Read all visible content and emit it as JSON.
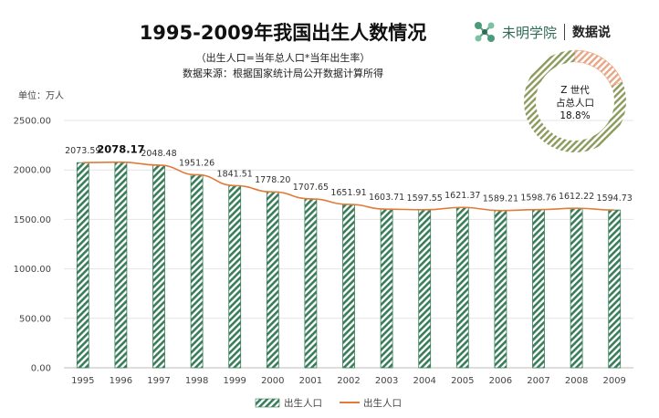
{
  "header": {
    "title": "1995-2009年我国出生人数情况",
    "subtitle": "（出生人口=当年总人口*当年出生率）",
    "source": "数据来源：根据国家统计局公开数据计算所得",
    "unit": "单位：万人"
  },
  "brand": {
    "name": "未明学院",
    "sub": "数据说",
    "logo_icon": "molecule-logo-icon",
    "color": "#2f6b57"
  },
  "donut": {
    "line1": "Z 世代",
    "line2": "占总人口",
    "percent_label": "18.8%",
    "value": 0.188,
    "highlight_color": "#e9a584",
    "base_color": "#8a9a5b"
  },
  "chart_data": {
    "type": "bar",
    "categories": [
      "1995",
      "1996",
      "1997",
      "1998",
      "1999",
      "2000",
      "2001",
      "2002",
      "2003",
      "2004",
      "2005",
      "2006",
      "2007",
      "2008",
      "2009"
    ],
    "series": [
      {
        "name": "出生人口",
        "kind": "bar",
        "color": "#3a7d5a",
        "values": [
          2073.59,
          2078.17,
          2048.48,
          1951.26,
          1841.51,
          1778.2,
          1707.65,
          1651.91,
          1603.71,
          1597.55,
          1621.37,
          1589.21,
          1598.76,
          1612.22,
          1594.73
        ]
      },
      {
        "name": "出生人口",
        "kind": "line",
        "color": "#e07b39",
        "values": [
          2073.59,
          2078.17,
          2048.48,
          1951.26,
          1841.51,
          1778.2,
          1707.65,
          1651.91,
          1603.71,
          1597.55,
          1621.37,
          1589.21,
          1598.76,
          1612.22,
          1594.73
        ]
      }
    ],
    "data_labels": [
      "2073.59",
      "2078.17",
      "2048.48",
      "1951.26",
      "1841.51",
      "1778.20",
      "1707.65",
      "1651.91",
      "1603.71",
      "1597.55",
      "1621.37",
      "1589.21",
      "1598.76",
      "1612.22",
      "1594.73"
    ],
    "bold_label_index": 1,
    "yticks": [
      "0.00",
      "500.00",
      "1000.00",
      "1500.00",
      "2000.00",
      "2500.00"
    ],
    "ylim": [
      0,
      2500
    ],
    "grid": true,
    "legend_position": "bottom"
  }
}
